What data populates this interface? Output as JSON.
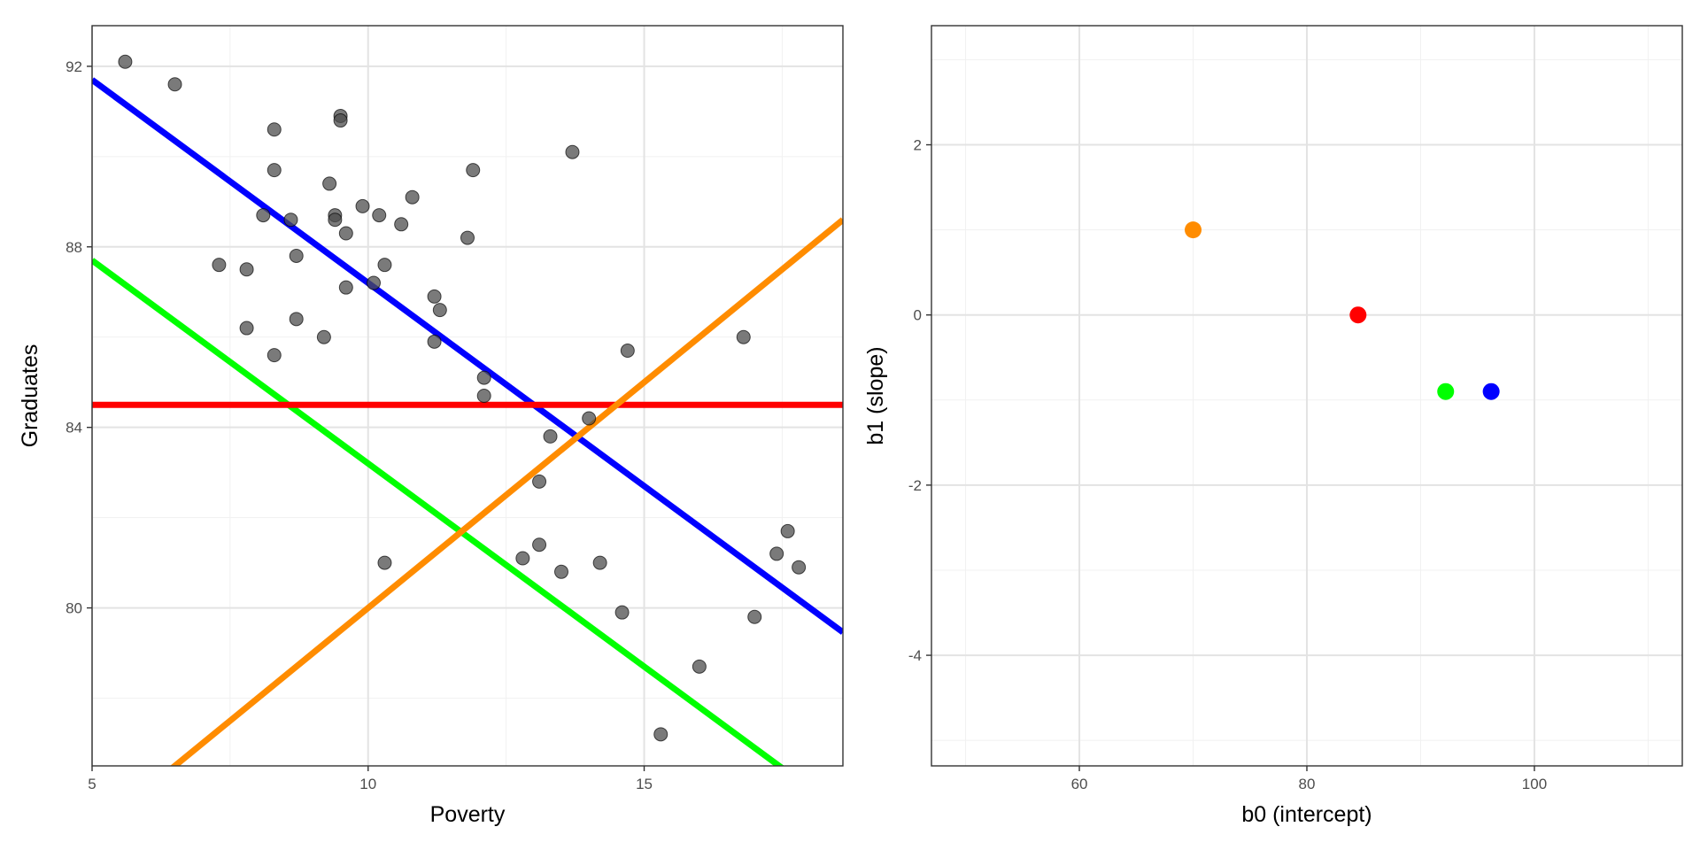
{
  "chart_data": [
    {
      "type": "scatter",
      "xlabel": "Poverty",
      "ylabel": "Graduates",
      "xlim": [
        5,
        18.6
      ],
      "ylim": [
        76.5,
        92.9
      ],
      "x_ticks": [
        5,
        10,
        15
      ],
      "y_ticks": [
        80,
        84,
        88,
        92
      ],
      "grid": true,
      "point_color": "#4d4d4d",
      "points": [
        [
          5.6,
          92.1
        ],
        [
          6.5,
          91.6
        ],
        [
          8.3,
          90.6
        ],
        [
          8.3,
          89.7
        ],
        [
          9.5,
          90.9
        ],
        [
          9.5,
          90.8
        ],
        [
          13.7,
          90.1
        ],
        [
          11.9,
          89.7
        ],
        [
          9.3,
          89.4
        ],
        [
          10.8,
          89.1
        ],
        [
          9.9,
          88.9
        ],
        [
          8.1,
          88.7
        ],
        [
          10.2,
          88.7
        ],
        [
          9.4,
          88.7
        ],
        [
          9.4,
          88.6
        ],
        [
          8.6,
          88.6
        ],
        [
          10.6,
          88.5
        ],
        [
          9.6,
          88.3
        ],
        [
          11.8,
          88.2
        ],
        [
          8.7,
          87.8
        ],
        [
          7.3,
          87.6
        ],
        [
          10.3,
          87.6
        ],
        [
          7.8,
          87.5
        ],
        [
          10.1,
          87.2
        ],
        [
          9.6,
          87.1
        ],
        [
          11.2,
          86.9
        ],
        [
          11.3,
          86.6
        ],
        [
          8.7,
          86.4
        ],
        [
          7.8,
          86.2
        ],
        [
          9.2,
          86.0
        ],
        [
          16.8,
          86.0
        ],
        [
          11.2,
          85.9
        ],
        [
          14.7,
          85.7
        ],
        [
          8.3,
          85.6
        ],
        [
          12.1,
          85.1
        ],
        [
          12.1,
          84.7
        ],
        [
          14.0,
          84.2
        ],
        [
          13.3,
          83.8
        ],
        [
          13.1,
          82.8
        ],
        [
          17.6,
          81.7
        ],
        [
          17.4,
          81.2
        ],
        [
          13.1,
          81.4
        ],
        [
          12.8,
          81.1
        ],
        [
          10.3,
          81.0
        ],
        [
          14.2,
          81.0
        ],
        [
          17.8,
          80.9
        ],
        [
          13.5,
          80.8
        ],
        [
          14.6,
          79.9
        ],
        [
          17.0,
          79.8
        ],
        [
          16.0,
          78.7
        ],
        [
          15.3,
          77.2
        ]
      ],
      "lines": [
        {
          "color": "#0000ff",
          "intercept": 96.2,
          "slope": -0.9
        },
        {
          "color": "#00ff00",
          "intercept": 92.2,
          "slope": -0.9
        },
        {
          "color": "#ff0000",
          "intercept": 84.5,
          "slope": 0
        },
        {
          "color": "#ff8c00",
          "intercept": 70,
          "slope": 1
        }
      ]
    },
    {
      "type": "scatter",
      "xlabel": "b0 (intercept)",
      "ylabel": "b1 (slope)",
      "xlim": [
        47,
        113
      ],
      "ylim": [
        -5.3,
        3.4
      ],
      "x_ticks": [
        60,
        80,
        100
      ],
      "y_ticks": [
        -4,
        -2,
        0,
        2
      ],
      "grid": true,
      "points": [
        {
          "x": 70,
          "y": 1,
          "color": "#ff8c00"
        },
        {
          "x": 84.5,
          "y": 0,
          "color": "#ff0000"
        },
        {
          "x": 92.2,
          "y": -0.9,
          "color": "#00ff00"
        },
        {
          "x": 96.2,
          "y": -0.9,
          "color": "#0000ff"
        }
      ]
    }
  ]
}
